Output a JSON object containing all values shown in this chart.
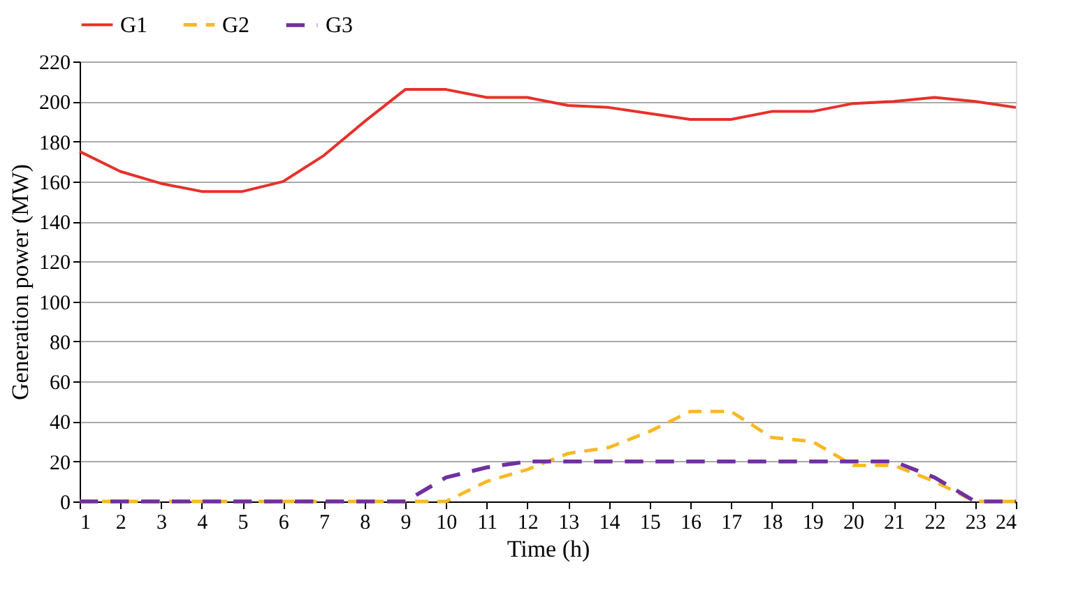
{
  "chart_data": {
    "type": "line",
    "xlabel": "Time (h)",
    "ylabel": "Generation power (MW)",
    "x": [
      1,
      2,
      3,
      4,
      5,
      6,
      7,
      8,
      9,
      10,
      11,
      12,
      13,
      14,
      15,
      16,
      17,
      18,
      19,
      20,
      21,
      22,
      23,
      24
    ],
    "xlim": [
      1,
      24
    ],
    "xticks": [
      1,
      2,
      3,
      4,
      5,
      6,
      7,
      8,
      9,
      10,
      11,
      12,
      13,
      14,
      15,
      16,
      17,
      18,
      19,
      20,
      21,
      22,
      23,
      24
    ],
    "ylim": [
      0,
      220
    ],
    "yticks": [
      0,
      20,
      40,
      60,
      80,
      100,
      120,
      140,
      160,
      180,
      200,
      220
    ],
    "grid": "y",
    "legend": "top",
    "marker": "none",
    "series": [
      {
        "name": "G1",
        "color": "#e8302a",
        "line_style": "solid",
        "values": [
          175,
          165,
          159,
          155,
          155,
          160,
          173,
          190,
          206,
          206,
          202,
          202,
          198,
          197,
          194,
          191,
          191,
          195,
          195,
          199,
          200,
          202,
          200,
          197
        ]
      },
      {
        "name": "G2",
        "color": "#f9b824",
        "line_style": "dashed",
        "values": [
          0,
          0,
          0,
          0,
          0,
          0,
          0,
          0,
          0,
          0,
          10,
          16,
          24,
          27,
          35,
          45,
          45,
          32,
          30,
          18,
          18,
          10,
          0,
          0
        ]
      },
      {
        "name": "G3",
        "color": "#7030a0",
        "line_style": "dashed",
        "values": [
          0,
          0,
          0,
          0,
          0,
          0,
          0,
          0,
          0,
          12,
          17,
          20,
          20,
          20,
          20,
          20,
          20,
          20,
          20,
          20,
          20,
          12,
          0,
          0
        ]
      }
    ]
  }
}
